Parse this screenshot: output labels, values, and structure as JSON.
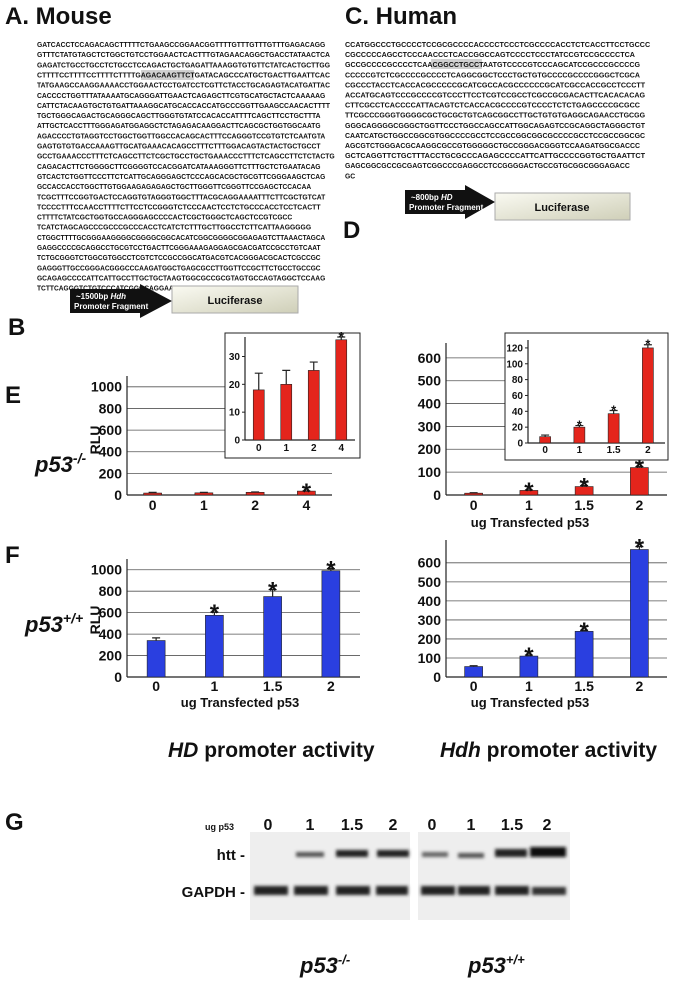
{
  "panels": {
    "a": "A. Mouse",
    "b": "B",
    "c": "C. Human",
    "d": "D",
    "e": "E",
    "f": "F",
    "g": "G"
  },
  "mouse": {
    "sequence": [
      "GATCACCTCCAGACAGCTTTTTCTGAAGCCGGAACGGTTTTGTTTGTTTGTTTGAGACAGG",
      "GTTTCTATGTAGCTCTGGCTGTCCTGGAACTCACTTTGTAGAACAGGCTGACCTATAACTCA",
      "GAGATCTGCCTGCCTCTGCCTCCAGACTGCTGAGATTAAAGGTGTGTTCTATCACTGCTTGG",
      "CTTTTCCTTTTCCTTTTCTTTTGAGACAAGTTCTGATACAGCCCATGCTGACTTGAATTCAC",
      "TATGAAGCCAAGGAAAACCTGGAACTCCTGATCCTCGTTCTACCTGCAGAGTACATGATTAC",
      "CACCCCTGGTTTATAAAATGCAGGGATTGAACTCAGAGCTTCGTGCATGCTACTCAAAAAG",
      "CATTCTACAAGTGCTGTGATTAAAGGCATGCACCACCATGCCCGGTTGAAGCCAACACTTTT",
      "TGCTGGGCAGACTGCAGGGCAGCTTGGGTGTATCCACACCATTTTCAGCTTCCTGCTTTA",
      "ATTGCTCACCTTTGGGAGATGGAGGCTCTAGAGACAAGGACTTCAGCGCTGGTGGCAATG",
      "AGACCCCTGTAGGTCCTGGCTGGTTGGCCACAGCACTTTCCAGGGTCCGTGTCTCAATGTA",
      "GAGTGTGTGACCAAAGTTGCATGAAACACAGCCTTTCTTTGGACAGTACTACTGCTGCCT",
      "GCCTGAAACCCTTTCTCAGCCTTCTCGCTGCCTGCTGAAACCCTTTCTCAGCCTTCTCTACTG",
      "CAGACACTTCTGGGGCTTCGGGGTCCACGGATCATAAAGGGTTCTTTGCTCTGAATACAG",
      "GTCACTCTGGTTCCCTTCTCATTGCAGGGAGCTCCCAGCACGCTGCGTTCGGGAAGCTCAG",
      "GCCACCACCTGGCTTGTGGAAGAGAGAGCTGCTTGGGTTCGGGTTCCGAGCTCCACAA",
      "TCGCTTTCCGGTGACTCCAGGTGTAGGGTGGCTTTACGCAGGAAAATTTCTTCGCTGTCAT",
      "TCCCCTTTCCAACCTTTTCTTCCTCCGGGTCTCCCAACTCCTCTGCCCACCTCCTCACTT",
      "CTTTTCTATCGCTGGTGCCAGGGAGCCCCACTCGCTGGGCTCAGCTCCGTCGCC",
      "TCATCTAGCAGCCCGCCCGCCCACCTCATCTCTTTGCTTGGCCTCTTCATTAAGGGGG",
      "CTGGCTTTTGCGGGAAGGGGCGGGGCGGCACATCGGCGGGGCGGAGAGTCTTAAACTAGCA",
      "GAGGCCCCGCAGGCCTGCGTCCTGACTTCGGGAAAGAGGAGCGACGATCCGCCTGTCAAT",
      "TCTGCGGGTCTGGCGTGGCCTCGTCTCCGCCGGCATGACGTCACGGGACGCACTCGCCGC",
      "GAGGGTTGCCGGGACGGGCCCAAGATGGCTGAGCGCCTTGGTTCCGCTTCTGCCTGCCGC",
      "GCAGAGCCCCATTCATTGCCTTGCTGCTAAGTGGCGCCGCGTAGTGCCAGTAGGCTCCAAG",
      "TCTTCAGGGTCTGTCCCATCGGGCAGGAAGCCGT"
    ]
  },
  "human": {
    "sequence": [
      "CCATGGCCCTGCCCCTCCGCGCCCCACCCCTCCCTCGCCCCACCTCTCACCTTCCTGCCC",
      "CGCCCCCAGCCTCCCAACCCTCACCGGCCAGTCCCCTCCCTATCCGTCCGCCCCTCA",
      "GCCGCCCCGCCCCTCAACGGCCTGCCTAATGTCCCCGTCCCAGCATCCGCCCGCCCCG",
      "CCCCCGTCTCGCCCCGCCCCTCAGGCGGCTCCCTGCTGTGCCCCGCCCCGGGCTCGCA",
      "CGCCCTACCTCACCACGCCCCCGCATCGCCACGCCCCCCGCATCGCCACCGCCTCCCTT",
      "ACCATGCAGTCCCGCCCCGTCCCTTCCTCGTCCGCCTCGCCGCGACACTTCACACACAG",
      "CTTCGCCTCACCCCATTACAGTCTCACCACGCCCCGTCCCCTCTCTGAGCCCCGCGCC",
      "TTCGCCCGGGTGGGGCGCTGCGCTGTCAGCGGCCTTGCTGTGTGAGGCAGAACCTGCGG",
      "GGGCAGGGGCGGGCTGGTTCCCTGGCCAGCCATTGGCAGAGTCCGCAGGCTAGGGCTGT",
      "CAATCATGCTGGCCGGCGTGGCCCCGCCTCCGCCGGCGGCGCCCCGCCTCCGCCGGCGC",
      "AGCGTCTGGGACGCAAGGCGCCGTGGGGGCTGCCGGGACGGGTCCAAGATGGCGACCC",
      "GCTCAGGTTCTGCTTTACCTGCGCCCAGAGCCCCATTCATTGCCCCGGTGCTGAATTCT",
      "GAGCGGCGCCGCGAGTCGGCCCGAGGCCTCCGGGGACTGCCGTGCGGCGGGAGACC",
      "GC"
    ]
  },
  "construct_b": {
    "size": "~1500bp",
    "gene": "Hdh",
    "text": "Promoter Fragment",
    "reporter": "Luciferase"
  },
  "construct_d": {
    "size": "~800bp",
    "gene": "HD",
    "text": "Promoter Fragment",
    "reporter": "Luciferase"
  },
  "genotype_e": {
    "base": "p53",
    "sup": "-/-"
  },
  "genotype_f": {
    "base": "p53",
    "sup": "+/+"
  },
  "activity_left": {
    "gene": "HD",
    "text": "promoter activity"
  },
  "activity_right": {
    "gene": "Hdh",
    "text": "promoter activity"
  },
  "chart_data": [
    {
      "type": "bar",
      "ylabel": "RLU",
      "categories": [
        "0",
        "1",
        "2",
        "4"
      ],
      "values": [
        18,
        20,
        25,
        36
      ],
      "errors": [
        6,
        5,
        3,
        1
      ],
      "markers": [
        null,
        null,
        null,
        "*"
      ],
      "color": "#e4251c",
      "ylim": [
        0,
        1100
      ],
      "yticks": [
        0,
        200,
        400,
        600,
        800,
        1000
      ],
      "grid": true
    },
    {
      "type": "bar",
      "categories": [
        "0",
        "1",
        "2",
        "4"
      ],
      "values": [
        18,
        20,
        25,
        36
      ],
      "errors": [
        6,
        5,
        3,
        1
      ],
      "markers": [
        null,
        null,
        null,
        "*"
      ],
      "color": "#e4251c",
      "ylim": [
        0,
        37
      ],
      "yticks": [
        0,
        10,
        20,
        30
      ],
      "grid": false
    },
    {
      "type": "bar",
      "xlabel": "ug Transfected p53",
      "categories": [
        "0",
        "1",
        "1.5",
        "2"
      ],
      "values": [
        8,
        20,
        37,
        120
      ],
      "errors": [
        2,
        2,
        4,
        4
      ],
      "markers": [
        null,
        "*",
        "*",
        "*"
      ],
      "color": "#e4251c",
      "ylim": [
        0,
        665
      ],
      "yticks": [
        0,
        100,
        200,
        300,
        400,
        500,
        600
      ],
      "grid": true
    },
    {
      "type": "bar",
      "categories": [
        "0",
        "1",
        "1.5",
        "2"
      ],
      "values": [
        8,
        20,
        37,
        120
      ],
      "errors": [
        2,
        2,
        4,
        4
      ],
      "markers": [
        null,
        "*",
        "*",
        "*"
      ],
      "color": "#e4251c",
      "ylim": [
        0,
        130
      ],
      "yticks": [
        0,
        20,
        40,
        60,
        80,
        100,
        120
      ],
      "grid": false
    },
    {
      "type": "bar",
      "ylabel": "RLU",
      "xlabel": "ug Transfected p53",
      "categories": [
        "0",
        "1",
        "1.5",
        "2"
      ],
      "values": [
        340,
        575,
        750,
        990
      ],
      "errors": [
        25,
        30,
        65,
        20
      ],
      "markers": [
        null,
        "*",
        "*",
        "*"
      ],
      "color": "#2a3fe0",
      "ylim": [
        0,
        1100
      ],
      "yticks": [
        0,
        200,
        400,
        600,
        800,
        1000
      ],
      "grid": true
    },
    {
      "type": "bar",
      "xlabel": "ug Transfected p53",
      "categories": [
        "0",
        "1",
        "1.5",
        "2"
      ],
      "values": [
        55,
        110,
        240,
        670
      ],
      "errors": [
        4,
        5,
        5,
        15
      ],
      "markers": [
        null,
        "*",
        "*",
        "*"
      ],
      "color": "#2a3fe0",
      "ylim": [
        0,
        720
      ],
      "yticks": [
        0,
        100,
        200,
        300,
        400,
        500,
        600
      ],
      "grid": true
    }
  ],
  "blot": {
    "dose_label": "ug p53",
    "lanes_left": [
      "0",
      "1",
      "1.5",
      "2"
    ],
    "lanes_right": [
      "0",
      "1",
      "1.5",
      "2"
    ],
    "rows": [
      "htt -",
      "GAPDH -"
    ],
    "genotype_left": {
      "base": "p53",
      "sup": "-/-"
    },
    "genotype_right": {
      "base": "p53",
      "sup": "+/+"
    }
  }
}
